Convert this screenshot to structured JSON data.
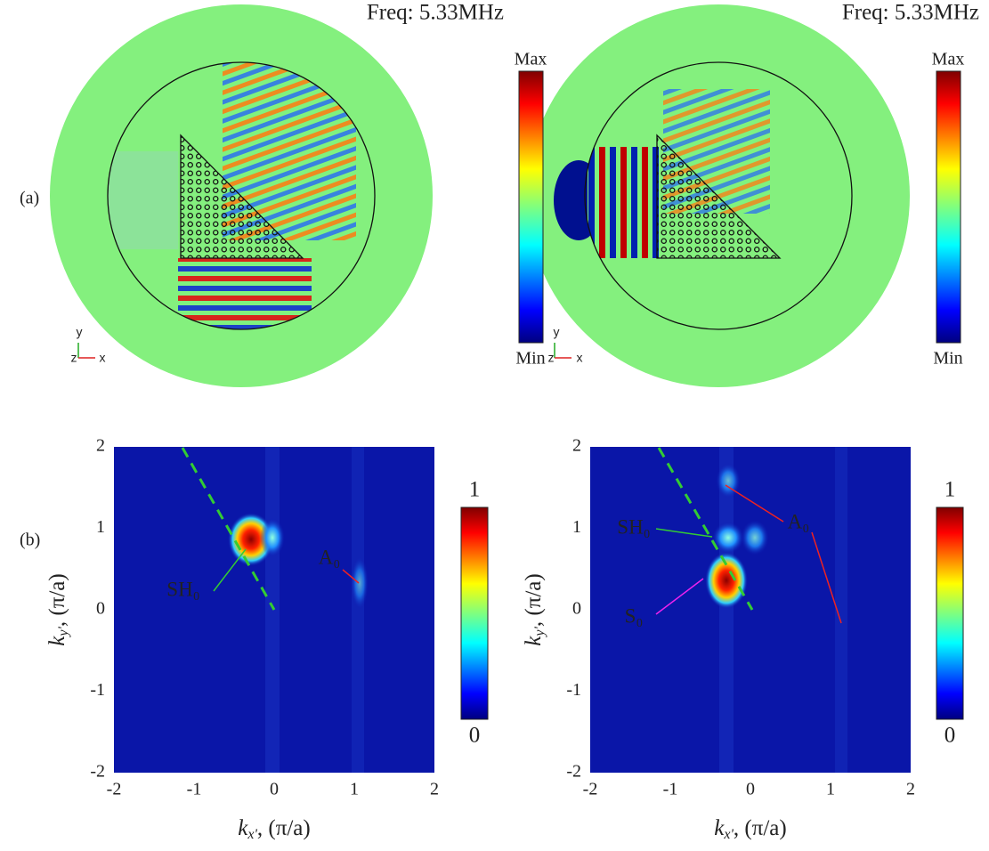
{
  "panel_a": {
    "label": "(a)",
    "plots": [
      {
        "frequency": "Freq: 5.33MHz",
        "colorbar_max": "Max",
        "colorbar_min": "Min",
        "axis_y": "y",
        "axis_z": "z",
        "axis_x": "x"
      },
      {
        "frequency": "Freq: 5.33MHz",
        "colorbar_max": "Max",
        "colorbar_min": "Min",
        "axis_y": "y",
        "axis_z": "z",
        "axis_x": "x"
      }
    ]
  },
  "panel_b": {
    "label": "(b)",
    "x_ticks": [
      "-2",
      "-1",
      "0",
      "1",
      "2"
    ],
    "y_ticks": [
      "2",
      "1",
      "0",
      "-1",
      "-2"
    ],
    "x_label": {
      "symbol": "k",
      "subscript": "x'",
      "unit": ", (π/a)"
    },
    "y_label": {
      "symbol": "k",
      "subscript": "y'",
      "unit": ", (π/a)"
    },
    "colorbar_ticks": [
      "1",
      "0"
    ],
    "plots": [
      {
        "annotations": {
          "a0": "A₀",
          "sh0": "SH₀"
        }
      },
      {
        "annotations": {
          "a0": "A₀",
          "sh0": "SH₀",
          "s0": "S₀"
        }
      }
    ]
  }
}
